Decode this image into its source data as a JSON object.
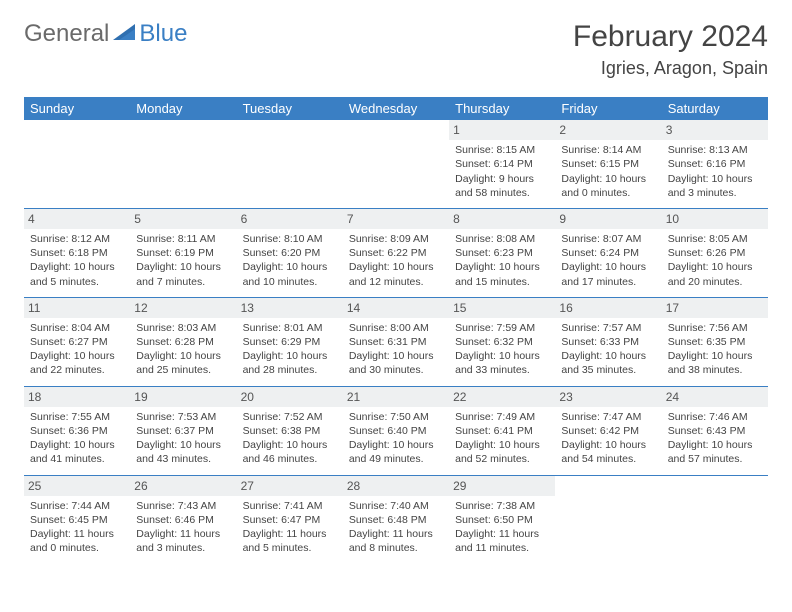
{
  "logo": {
    "text1": "General",
    "text2": "Blue"
  },
  "title": "February 2024",
  "location": "Igries, Aragon, Spain",
  "colors": {
    "header_bg": "#3a7fc4",
    "header_text": "#ffffff",
    "daynum_bg": "#eef0f1",
    "row_border": "#3a7fc4",
    "body_text": "#444444",
    "logo_gray": "#6a6a6a",
    "logo_blue": "#3a7fc4"
  },
  "dayNames": [
    "Sunday",
    "Monday",
    "Tuesday",
    "Wednesday",
    "Thursday",
    "Friday",
    "Saturday"
  ],
  "weeks": [
    [
      null,
      null,
      null,
      null,
      {
        "n": "1",
        "sr": "Sunrise: 8:15 AM",
        "ss": "Sunset: 6:14 PM",
        "dl1": "Daylight: 9 hours",
        "dl2": "and 58 minutes."
      },
      {
        "n": "2",
        "sr": "Sunrise: 8:14 AM",
        "ss": "Sunset: 6:15 PM",
        "dl1": "Daylight: 10 hours",
        "dl2": "and 0 minutes."
      },
      {
        "n": "3",
        "sr": "Sunrise: 8:13 AM",
        "ss": "Sunset: 6:16 PM",
        "dl1": "Daylight: 10 hours",
        "dl2": "and 3 minutes."
      }
    ],
    [
      {
        "n": "4",
        "sr": "Sunrise: 8:12 AM",
        "ss": "Sunset: 6:18 PM",
        "dl1": "Daylight: 10 hours",
        "dl2": "and 5 minutes."
      },
      {
        "n": "5",
        "sr": "Sunrise: 8:11 AM",
        "ss": "Sunset: 6:19 PM",
        "dl1": "Daylight: 10 hours",
        "dl2": "and 7 minutes."
      },
      {
        "n": "6",
        "sr": "Sunrise: 8:10 AM",
        "ss": "Sunset: 6:20 PM",
        "dl1": "Daylight: 10 hours",
        "dl2": "and 10 minutes."
      },
      {
        "n": "7",
        "sr": "Sunrise: 8:09 AM",
        "ss": "Sunset: 6:22 PM",
        "dl1": "Daylight: 10 hours",
        "dl2": "and 12 minutes."
      },
      {
        "n": "8",
        "sr": "Sunrise: 8:08 AM",
        "ss": "Sunset: 6:23 PM",
        "dl1": "Daylight: 10 hours",
        "dl2": "and 15 minutes."
      },
      {
        "n": "9",
        "sr": "Sunrise: 8:07 AM",
        "ss": "Sunset: 6:24 PM",
        "dl1": "Daylight: 10 hours",
        "dl2": "and 17 minutes."
      },
      {
        "n": "10",
        "sr": "Sunrise: 8:05 AM",
        "ss": "Sunset: 6:26 PM",
        "dl1": "Daylight: 10 hours",
        "dl2": "and 20 minutes."
      }
    ],
    [
      {
        "n": "11",
        "sr": "Sunrise: 8:04 AM",
        "ss": "Sunset: 6:27 PM",
        "dl1": "Daylight: 10 hours",
        "dl2": "and 22 minutes."
      },
      {
        "n": "12",
        "sr": "Sunrise: 8:03 AM",
        "ss": "Sunset: 6:28 PM",
        "dl1": "Daylight: 10 hours",
        "dl2": "and 25 minutes."
      },
      {
        "n": "13",
        "sr": "Sunrise: 8:01 AM",
        "ss": "Sunset: 6:29 PM",
        "dl1": "Daylight: 10 hours",
        "dl2": "and 28 minutes."
      },
      {
        "n": "14",
        "sr": "Sunrise: 8:00 AM",
        "ss": "Sunset: 6:31 PM",
        "dl1": "Daylight: 10 hours",
        "dl2": "and 30 minutes."
      },
      {
        "n": "15",
        "sr": "Sunrise: 7:59 AM",
        "ss": "Sunset: 6:32 PM",
        "dl1": "Daylight: 10 hours",
        "dl2": "and 33 minutes."
      },
      {
        "n": "16",
        "sr": "Sunrise: 7:57 AM",
        "ss": "Sunset: 6:33 PM",
        "dl1": "Daylight: 10 hours",
        "dl2": "and 35 minutes."
      },
      {
        "n": "17",
        "sr": "Sunrise: 7:56 AM",
        "ss": "Sunset: 6:35 PM",
        "dl1": "Daylight: 10 hours",
        "dl2": "and 38 minutes."
      }
    ],
    [
      {
        "n": "18",
        "sr": "Sunrise: 7:55 AM",
        "ss": "Sunset: 6:36 PM",
        "dl1": "Daylight: 10 hours",
        "dl2": "and 41 minutes."
      },
      {
        "n": "19",
        "sr": "Sunrise: 7:53 AM",
        "ss": "Sunset: 6:37 PM",
        "dl1": "Daylight: 10 hours",
        "dl2": "and 43 minutes."
      },
      {
        "n": "20",
        "sr": "Sunrise: 7:52 AM",
        "ss": "Sunset: 6:38 PM",
        "dl1": "Daylight: 10 hours",
        "dl2": "and 46 minutes."
      },
      {
        "n": "21",
        "sr": "Sunrise: 7:50 AM",
        "ss": "Sunset: 6:40 PM",
        "dl1": "Daylight: 10 hours",
        "dl2": "and 49 minutes."
      },
      {
        "n": "22",
        "sr": "Sunrise: 7:49 AM",
        "ss": "Sunset: 6:41 PM",
        "dl1": "Daylight: 10 hours",
        "dl2": "and 52 minutes."
      },
      {
        "n": "23",
        "sr": "Sunrise: 7:47 AM",
        "ss": "Sunset: 6:42 PM",
        "dl1": "Daylight: 10 hours",
        "dl2": "and 54 minutes."
      },
      {
        "n": "24",
        "sr": "Sunrise: 7:46 AM",
        "ss": "Sunset: 6:43 PM",
        "dl1": "Daylight: 10 hours",
        "dl2": "and 57 minutes."
      }
    ],
    [
      {
        "n": "25",
        "sr": "Sunrise: 7:44 AM",
        "ss": "Sunset: 6:45 PM",
        "dl1": "Daylight: 11 hours",
        "dl2": "and 0 minutes."
      },
      {
        "n": "26",
        "sr": "Sunrise: 7:43 AM",
        "ss": "Sunset: 6:46 PM",
        "dl1": "Daylight: 11 hours",
        "dl2": "and 3 minutes."
      },
      {
        "n": "27",
        "sr": "Sunrise: 7:41 AM",
        "ss": "Sunset: 6:47 PM",
        "dl1": "Daylight: 11 hours",
        "dl2": "and 5 minutes."
      },
      {
        "n": "28",
        "sr": "Sunrise: 7:40 AM",
        "ss": "Sunset: 6:48 PM",
        "dl1": "Daylight: 11 hours",
        "dl2": "and 8 minutes."
      },
      {
        "n": "29",
        "sr": "Sunrise: 7:38 AM",
        "ss": "Sunset: 6:50 PM",
        "dl1": "Daylight: 11 hours",
        "dl2": "and 11 minutes."
      },
      null,
      null
    ]
  ]
}
